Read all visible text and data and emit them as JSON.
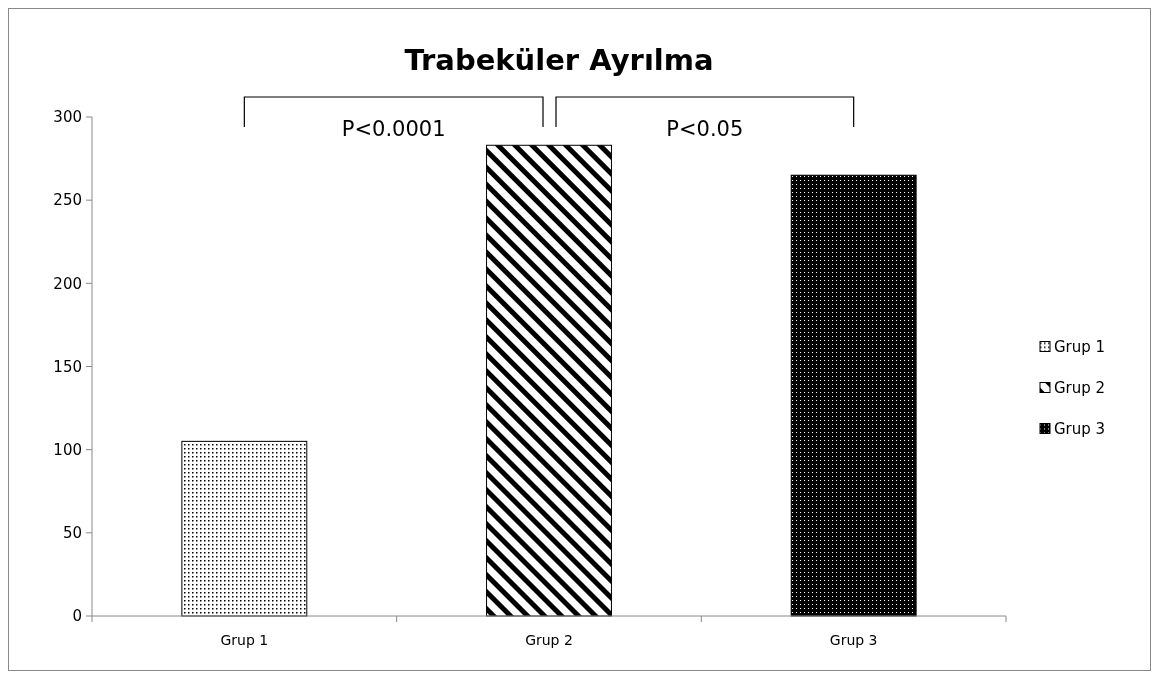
{
  "chart_data": {
    "type": "bar",
    "title": "Trabeküler Ayrılma",
    "categories": [
      "Grup 1",
      "Grup 2",
      "Grup 3"
    ],
    "stacked": true,
    "series": [
      {
        "name": "Grup 1",
        "color": "#000000",
        "values": [
          105,
          null,
          null
        ]
      },
      {
        "name": "Grup 2",
        "color": "#000000",
        "values": [
          null,
          283,
          null
        ]
      },
      {
        "name": "Grup 3",
        "color": "#000000",
        "values": [
          null,
          null,
          265
        ]
      }
    ],
    "ylim": [
      0,
      300
    ],
    "yticks": [
      0,
      50,
      100,
      150,
      200,
      250,
      300
    ],
    "grid": false,
    "legend": "right",
    "annotations": [
      "P<0.0001",
      "P<0.05"
    ]
  }
}
